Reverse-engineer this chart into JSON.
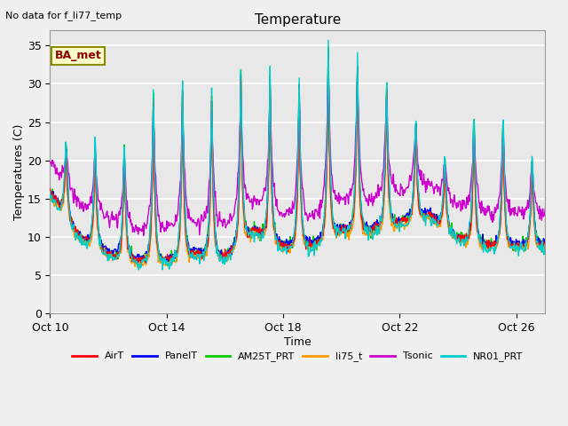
{
  "title": "Temperature",
  "xlabel": "Time",
  "ylabel": "Temperatures (C)",
  "top_left_note": "No data for f_li77_temp",
  "legend_label": "BA_met",
  "ylim": [
    0,
    37
  ],
  "yticks": [
    0,
    5,
    10,
    15,
    20,
    25,
    30,
    35
  ],
  "xtick_labels": [
    "Oct 10",
    "Oct 14",
    "Oct 18",
    "Oct 22",
    "Oct 26"
  ],
  "xtick_pos": [
    0,
    4,
    8,
    12,
    16
  ],
  "xlim": [
    0,
    17
  ],
  "series": {
    "AirT": {
      "color": "#ff0000"
    },
    "PanelT": {
      "color": "#0000ff"
    },
    "AM25T_PRT": {
      "color": "#00cc00"
    },
    "li75_t": {
      "color": "#ff9900"
    },
    "Tsonic": {
      "color": "#cc00cc"
    },
    "NR01_PRT": {
      "color": "#00cccc"
    }
  },
  "fig_facecolor": "#f0f0f0",
  "ax_facecolor": "#e8e8e8",
  "grid_color": "#ffffff",
  "figsize": [
    6.4,
    4.8
  ],
  "dpi": 100
}
